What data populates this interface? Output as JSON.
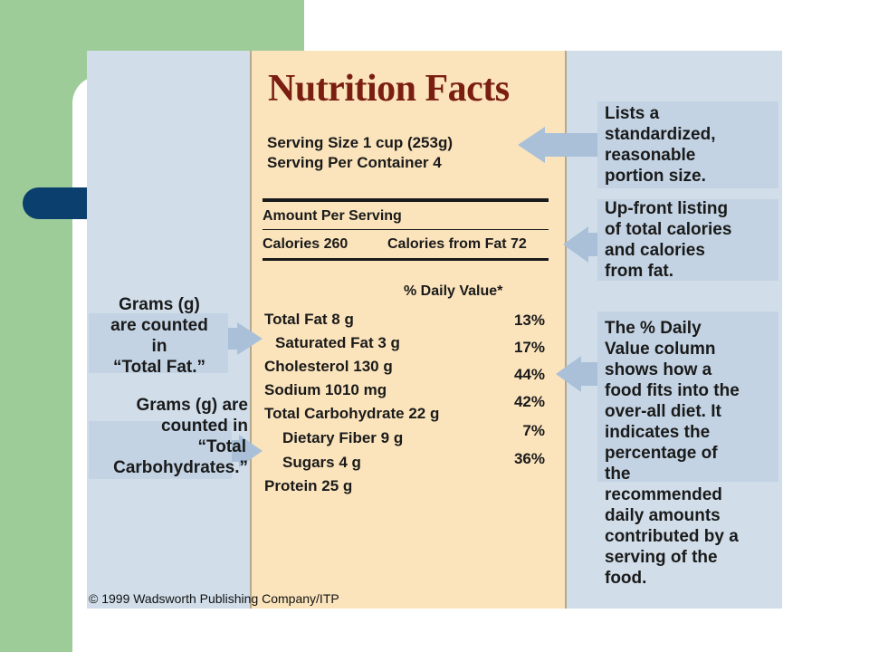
{
  "label_title": "Nutrition Facts",
  "serving": {
    "size": "Serving Size 1 cup (253g)",
    "per_container": "Serving Per Container 4"
  },
  "amount_per_serving": "Amount Per Serving",
  "calories": {
    "total": "Calories 260",
    "from_fat": "Calories from Fat 72"
  },
  "daily_value_header": "% Daily Value*",
  "nutrients": [
    {
      "name": "Total Fat  8 g",
      "dv": "13%"
    },
    {
      "name": "Saturated Fat  3 g",
      "dv": "17%"
    },
    {
      "name": "Cholesterol  130 g",
      "dv": "44%"
    },
    {
      "name": "Sodium  1010 mg",
      "dv": "42%"
    },
    {
      "name": "Total Carbohydrate  22 g",
      "dv": "7%"
    },
    {
      "name": "Dietary Fiber  9 g",
      "dv": "36%"
    },
    {
      "name": "Sugars  4 g",
      "dv": ""
    },
    {
      "name": "Protein  25 g",
      "dv": ""
    }
  ],
  "callouts": {
    "serving_size": [
      "Lists a",
      "standardized,",
      "reasonable",
      "portion size."
    ],
    "calories": [
      "Up-front listing",
      "of total calories",
      "and calories",
      "from fat."
    ],
    "daily_value": [
      "The % Daily",
      "Value column",
      "shows how a",
      "food fits into the",
      "over-all diet. It",
      "indicates the",
      "percentage of",
      "the",
      "recommended",
      "daily amounts",
      "contributed by a",
      "serving of the",
      "food."
    ],
    "total_fat": [
      "Grams (g)",
      "are counted",
      "in",
      "“Total Fat.”"
    ],
    "total_carb": [
      "Grams (g) are",
      "counted in",
      "“Total",
      "Carbohydrates.”"
    ]
  },
  "copyright": "© 1999 Wadsworth Publishing Company/ITP",
  "colors": {
    "slide_green": "#9dcc99",
    "navy_accent": "#0b3f6e",
    "panel_blue": "#d1deea",
    "label_cream": "#fbe4bc",
    "title_red": "#7a1e12",
    "arrow_blue": "#a9c0d8"
  }
}
